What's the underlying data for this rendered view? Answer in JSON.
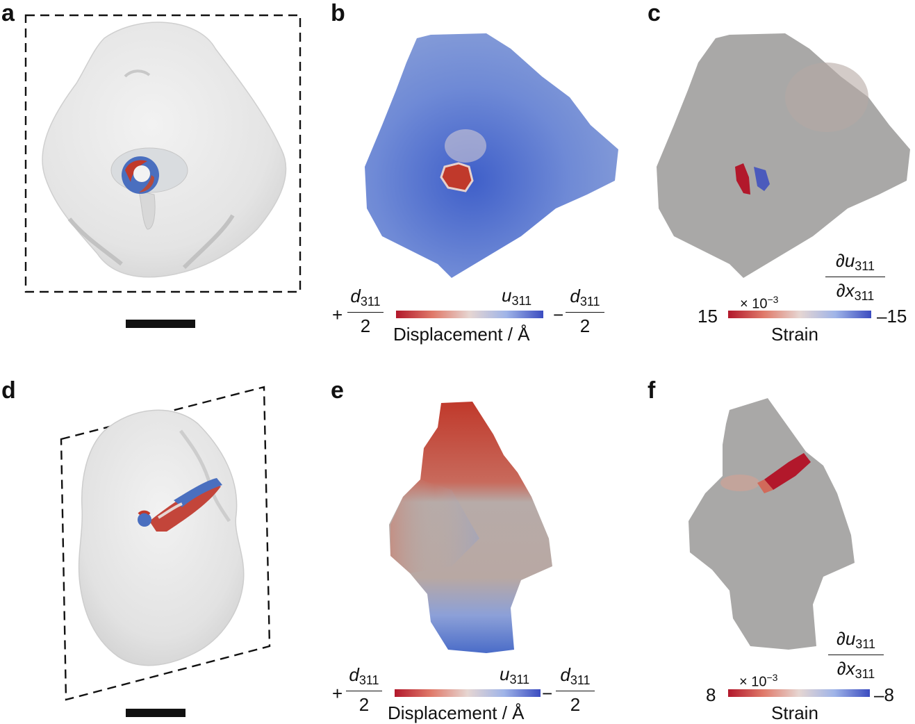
{
  "panels": {
    "a": {
      "letter": "a"
    },
    "b": {
      "letter": "b",
      "colorbar": {
        "left_sign": "+",
        "right_sign": "−",
        "frac_num": "d",
        "frac_sub": "311",
        "frac_den": "2",
        "var": "u",
        "var_sub": "311",
        "label": "Displacement / Å"
      }
    },
    "c": {
      "letter": "c",
      "colorbar": {
        "left_value": "15",
        "right_value": "–15",
        "scale": "× 10",
        "scale_exp": "−3",
        "label": "Strain",
        "deriv_num": "∂u",
        "deriv_den": "∂x",
        "deriv_sub": "311"
      }
    },
    "d": {
      "letter": "d"
    },
    "e": {
      "letter": "e",
      "colorbar": {
        "left_sign": "+",
        "right_sign": "−",
        "frac_num": "d",
        "frac_sub": "311",
        "frac_den": "2",
        "var": "u",
        "var_sub": "311",
        "label": "Displacement / Å"
      }
    },
    "f": {
      "letter": "f",
      "colorbar": {
        "left_value": "8",
        "right_value": "–8",
        "scale": "× 10",
        "scale_exp": "−3",
        "label": "Strain",
        "deriv_num": "∂u",
        "deriv_den": "∂x",
        "deriv_sub": "311"
      }
    }
  },
  "colors": {
    "red": "#b2182b",
    "neutral": "#e6d6d2",
    "blue": "#3b4cc0",
    "gray": "#a8a7a6",
    "shell": "#e6e6e6"
  }
}
